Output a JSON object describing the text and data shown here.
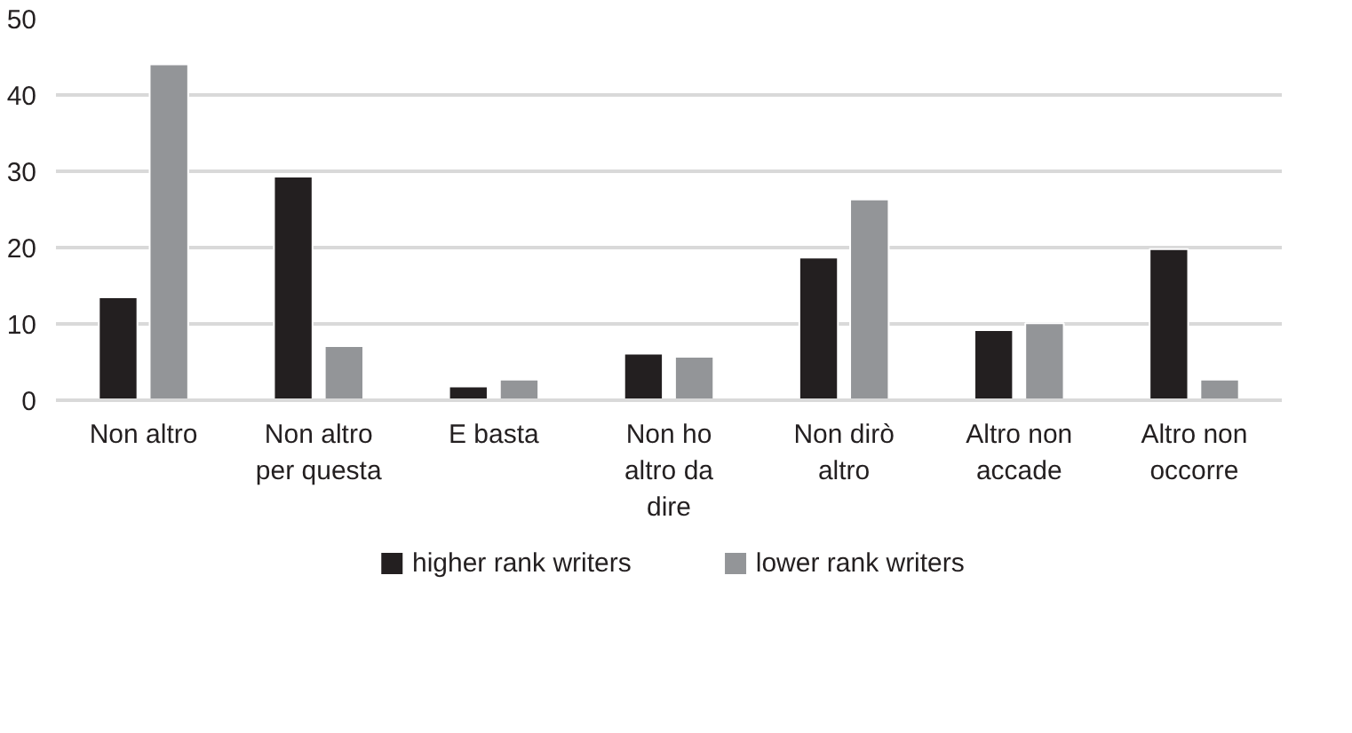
{
  "chart_data": {
    "type": "bar",
    "categories": [
      "Non altro",
      "Non altro per questa",
      "E basta",
      "Non ho altro da dire",
      "Non dirò altro",
      "Altro non accade",
      "Altro non occorre"
    ],
    "series": [
      {
        "name": "higher rank writers",
        "color": "#231f20",
        "values": [
          13.5,
          29.3,
          1.8,
          6.1,
          18.7,
          9.2,
          19.8
        ]
      },
      {
        "name": "lower rank writers",
        "color": "#939598",
        "values": [
          44.0,
          7.1,
          2.7,
          5.7,
          26.3,
          10.1,
          2.7
        ]
      }
    ],
    "ylim": [
      0,
      50
    ],
    "yticks": [
      0,
      10,
      20,
      30,
      40,
      50
    ],
    "grid": "y",
    "legend": "bottom"
  }
}
